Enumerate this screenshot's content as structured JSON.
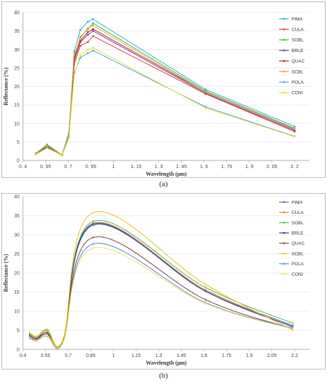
{
  "captions": [
    "(a)",
    "(b)"
  ],
  "chart_data": [
    {
      "type": "line",
      "title": "",
      "xlabel": "Wavelength (μm)",
      "ylabel": "Reflectance (%)",
      "xlim": [
        0.4,
        2.3
      ],
      "ylim": [
        0,
        40
      ],
      "xticks": [
        0.4,
        0.55,
        0.7,
        0.85,
        1.0,
        1.15,
        1.3,
        1.45,
        1.6,
        1.75,
        1.9,
        2.05,
        2.2
      ],
      "xtick_labels": [
        "0. 4",
        "0. 55",
        "0. 7",
        "0. 85",
        "1",
        "1. 15",
        "1. 3",
        "1. 45",
        "1. 6",
        "1. 75",
        "1. 9",
        "2. 05",
        "2. 2"
      ],
      "yticks": [
        0,
        5,
        10,
        15,
        20,
        25,
        30,
        35,
        40
      ],
      "ytick_labels": [
        "0",
        "5",
        "10",
        "15",
        "20",
        "25",
        "30",
        "35",
        "40"
      ],
      "grid": "horizontal",
      "legend": "right",
      "smooth": false,
      "x": [
        0.485,
        0.56,
        0.66,
        0.705,
        0.74,
        0.78,
        0.83,
        0.865,
        1.61,
        2.2
      ],
      "series": [
        {
          "name": "PIMA",
          "color": "#2ab0c8",
          "values": [
            1.9,
            4.3,
            1.5,
            7.6,
            29.5,
            35.3,
            37.5,
            38.2,
            19.2,
            9.2
          ]
        },
        {
          "name": "CULA",
          "color": "#d63a3a",
          "values": [
            1.8,
            3.7,
            1.5,
            6.8,
            26.0,
            31.0,
            32.0,
            33.6,
            18.0,
            7.8
          ]
        },
        {
          "name": "SOBL",
          "color": "#3cba3c",
          "values": [
            1.9,
            4.2,
            1.5,
            7.2,
            28.0,
            33.4,
            35.5,
            37.1,
            18.8,
            8.7
          ]
        },
        {
          "name": "BRLE",
          "color": "#6a3f9c",
          "values": [
            1.9,
            3.8,
            1.5,
            6.9,
            27.0,
            32.0,
            34.0,
            35.0,
            18.2,
            8.1
          ]
        },
        {
          "name": "QUAC",
          "color": "#b81f1f",
          "values": [
            1.9,
            3.9,
            1.5,
            7.1,
            27.5,
            32.3,
            34.7,
            35.5,
            18.5,
            8.4
          ]
        },
        {
          "name": "SCBL",
          "color": "#f39c3a",
          "values": [
            1.9,
            4.0,
            1.5,
            7.0,
            28.5,
            33.0,
            35.8,
            36.5,
            18.5,
            8.5
          ]
        },
        {
          "name": "POLA",
          "color": "#4aa3df",
          "values": [
            1.7,
            3.5,
            1.3,
            6.4,
            23.5,
            27.8,
            29.0,
            29.7,
            14.5,
            6.5
          ]
        },
        {
          "name": "CONI",
          "color": "#e6e02e",
          "values": [
            1.6,
            3.3,
            1.4,
            6.0,
            23.0,
            28.5,
            30.0,
            30.5,
            14.2,
            6.4
          ]
        }
      ]
    },
    {
      "type": "line",
      "title": "",
      "xlabel": "Wavelength (μm)",
      "ylabel": "Reflectance (%)",
      "xlim": [
        0.4,
        2.3
      ],
      "ylim": [
        0,
        40
      ],
      "xticks": [
        0.4,
        0.55,
        0.7,
        0.85,
        1.0,
        1.15,
        1.3,
        1.45,
        1.6,
        1.75,
        1.9,
        2.05,
        2.2
      ],
      "xtick_labels": [
        "0.4",
        "0.55",
        "0.7",
        "0.85",
        "1",
        "1.15",
        "1.3",
        "1.45",
        "1.6",
        "1.75",
        "1.9",
        "2.05",
        "2.2"
      ],
      "yticks": [
        0,
        5,
        10,
        15,
        20,
        25,
        30,
        35,
        40
      ],
      "ytick_labels": [
        "0",
        "5",
        "10",
        "15",
        "20",
        "25",
        "30",
        "35",
        "40"
      ],
      "grid": "horizontal",
      "legend": "right",
      "smooth": true,
      "x": [
        0.443,
        0.49,
        0.56,
        0.665,
        0.865,
        1.61,
        2.19
      ],
      "series": [
        {
          "name": "PIMA",
          "color": "#4a6fb5",
          "values": [
            3.6,
            2.9,
            4.4,
            2.0,
            32.5,
            15.5,
            6.2
          ]
        },
        {
          "name": "CULA",
          "color": "#d9822b",
          "values": [
            3.9,
            3.0,
            4.9,
            2.2,
            33.0,
            15.5,
            5.8
          ]
        },
        {
          "name": "SOBL",
          "color": "#5cb85c",
          "values": [
            4.2,
            3.3,
            5.2,
            2.4,
            33.5,
            16.2,
            6.8
          ]
        },
        {
          "name": "BRLE",
          "color": "#2b3a8c",
          "values": [
            3.7,
            2.8,
            4.4,
            2.1,
            32.8,
            15.2,
            5.9
          ]
        },
        {
          "name": "QUAC",
          "color": "#8b4a3c",
          "values": [
            3.2,
            2.5,
            4.0,
            1.9,
            29.3,
            13.0,
            5.4
          ]
        },
        {
          "name": "SCBL",
          "color": "#f0c419",
          "values": [
            4.4,
            3.4,
            5.0,
            2.5,
            35.8,
            17.0,
            5.0
          ]
        },
        {
          "name": "POLA",
          "color": "#5b8def",
          "values": [
            2.9,
            2.2,
            3.5,
            1.7,
            27.6,
            12.2,
            5.5
          ]
        },
        {
          "name": "CONI",
          "color": "#f2e85c",
          "values": [
            3.0,
            2.2,
            3.6,
            1.7,
            26.5,
            12.0,
            5.3
          ]
        }
      ]
    }
  ]
}
